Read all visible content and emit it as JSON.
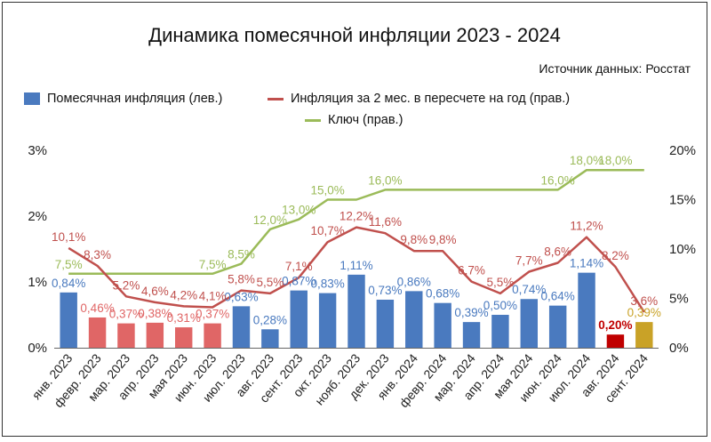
{
  "title": "Динамика помесячной инфляции 2023 - 2024",
  "source": "Источник данных: Росстат",
  "legend": [
    {
      "label": "Помесячная инфляция (лев.)",
      "color": "#4a7abf"
    },
    {
      "label": "Инфляция за 2 мес. в пересчете на год (прав.)",
      "color": "#c0504d"
    },
    {
      "label": "Ключ (прав.)",
      "color": "#9bbb59"
    }
  ],
  "chart_data": {
    "type": "bar",
    "categories": [
      "янв. 2023",
      "февр. 2023",
      "мар. 2023",
      "апр. 2023",
      "мая 2023",
      "июн. 2023",
      "июл. 2023",
      "авг. 2023",
      "сент. 2023",
      "окт. 2023",
      "нояб. 2023",
      "дек. 2023",
      "янв. 2024",
      "февр. 2024",
      "мар. 2024",
      "апр. 2024",
      "мая 2024",
      "июн. 2024",
      "июл. 2024",
      "авг. 2024",
      "сент. 2024"
    ],
    "y_left_ticks": [
      "0%",
      "1%",
      "2%",
      "3%"
    ],
    "y_left_lim": [
      0,
      3
    ],
    "y_right_ticks": [
      "0%",
      "5%",
      "10%",
      "15%",
      "20%"
    ],
    "y_right_lim": [
      0,
      20
    ],
    "series": [
      {
        "name": "Помесячная инфляция (лев.)",
        "type": "bar",
        "axis": "left",
        "values": [
          0.84,
          0.46,
          0.37,
          0.38,
          0.31,
          0.37,
          0.63,
          0.28,
          0.87,
          0.83,
          1.11,
          0.73,
          0.86,
          0.68,
          0.39,
          0.5,
          0.74,
          0.64,
          1.14,
          0.2,
          0.39
        ],
        "labels": [
          "0,84%",
          "0,46%",
          "0,37%",
          "0,38%",
          "0,31%",
          "0,37%",
          "0,63%",
          "0,28%",
          "0,87%",
          "0,83%",
          "1,11%",
          "0,73%",
          "0,86%",
          "0,68%",
          "0,39%",
          "0,50%",
          "0,74%",
          "0,64%",
          "1,14%",
          "0,20%",
          "0,39%"
        ],
        "colors": [
          "#4a7abf",
          "#e06666",
          "#e06666",
          "#e06666",
          "#e06666",
          "#e06666",
          "#4a7abf",
          "#4a7abf",
          "#4a7abf",
          "#4a7abf",
          "#4a7abf",
          "#4a7abf",
          "#4a7abf",
          "#4a7abf",
          "#4a7abf",
          "#4a7abf",
          "#4a7abf",
          "#4a7abf",
          "#4a7abf",
          "#c00000",
          "#c9a227"
        ],
        "label_colors": [
          "#4a7abf",
          "#e06666",
          "#e06666",
          "#e06666",
          "#e06666",
          "#e06666",
          "#4a7abf",
          "#4a7abf",
          "#4a7abf",
          "#4a7abf",
          "#4a7abf",
          "#4a7abf",
          "#4a7abf",
          "#4a7abf",
          "#4a7abf",
          "#4a7abf",
          "#4a7abf",
          "#4a7abf",
          "#4a7abf",
          "#c00000",
          "#c9a227"
        ]
      },
      {
        "name": "Инфляция за 2 мес. в пересчете на год (прав.)",
        "type": "line",
        "axis": "right",
        "values": [
          10.1,
          8.3,
          5.2,
          4.6,
          4.2,
          4.1,
          5.8,
          5.5,
          7.1,
          10.7,
          12.2,
          11.6,
          9.8,
          9.8,
          6.7,
          5.5,
          7.7,
          8.6,
          11.2,
          8.2,
          3.6
        ],
        "labels": [
          "10,1%",
          "8,3%",
          "5,2%",
          "4,6%",
          "4,2%",
          "4,1%",
          "5,8%",
          "5,5%",
          "7,1%",
          "10,7%",
          "12,2%",
          "11,6%",
          "9,8%",
          "9,8%",
          "6,7%",
          "5,5%",
          "7,7%",
          "8,6%",
          "11,2%",
          "8,2%",
          "3,6%"
        ],
        "color": "#c0504d"
      },
      {
        "name": "Ключ (прав.)",
        "type": "line",
        "axis": "right",
        "values": [
          7.5,
          7.5,
          7.5,
          7.5,
          7.5,
          7.5,
          8.5,
          12.0,
          13.0,
          15.0,
          15.0,
          16.0,
          16.0,
          16.0,
          16.0,
          16.0,
          16.0,
          16.0,
          18.0,
          18.0,
          18.0
        ],
        "labels": [
          "7,5%",
          "7,5%",
          "7,5%",
          "7,5%",
          "7,5%",
          "7,5%",
          "8,5%",
          "12,0%",
          "13,0%",
          "15,0%",
          "15,0%",
          "16,0%",
          "16,0%",
          "16,0%",
          "16,0%",
          "16,0%",
          "16,0%",
          "16,0%",
          "18,0%",
          "18,0%",
          "18,0%"
        ],
        "label_indices": [
          0,
          5,
          6,
          7,
          8,
          9,
          11,
          17,
          18,
          19
        ],
        "color": "#9bbb59"
      }
    ]
  }
}
